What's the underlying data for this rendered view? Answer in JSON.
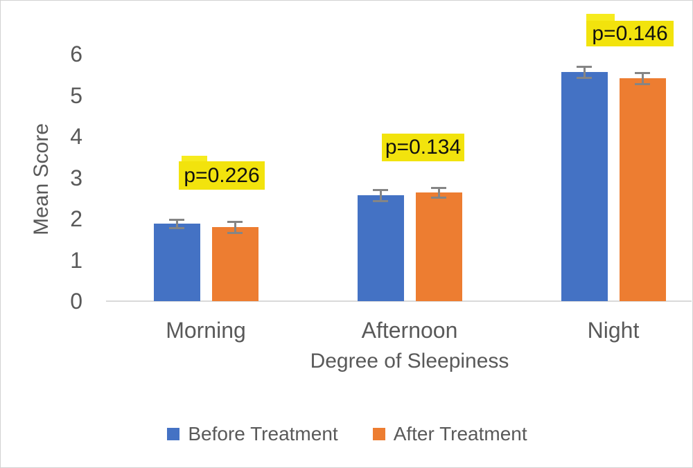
{
  "chart_data": {
    "type": "bar",
    "title": "",
    "xlabel": "Degree of Sleepiness",
    "ylabel": "Mean Score",
    "categories": [
      "Morning",
      "Afternoon",
      "Night"
    ],
    "series": [
      {
        "name": "Before Treatment",
        "color": "#4472C4",
        "values": [
          1.88,
          2.57,
          5.56
        ],
        "errors": [
          0.1,
          0.13,
          0.13
        ]
      },
      {
        "name": "After Treatment",
        "color": "#ED7D31",
        "values": [
          1.8,
          2.64,
          5.41
        ],
        "errors": [
          0.14,
          0.12,
          0.13
        ]
      }
    ],
    "annotations": [
      {
        "label": "p=0.226",
        "category": "Morning"
      },
      {
        "label": "p=0.134",
        "category": "Afternoon"
      },
      {
        "label": "p=0.146",
        "category": "Night"
      }
    ],
    "ylim": [
      0,
      6
    ],
    "yticks": [
      0,
      1,
      2,
      3,
      4,
      5,
      6
    ],
    "grid": false,
    "legend_position": "bottom",
    "colors": {
      "annotation_highlight": "#F2E30D",
      "annotation_highlight_bump": "#F6EB1E",
      "annotation_text": "#111111",
      "error_bar": "#858585",
      "axis_line": "#D9D9D9",
      "text": "#595959"
    }
  }
}
